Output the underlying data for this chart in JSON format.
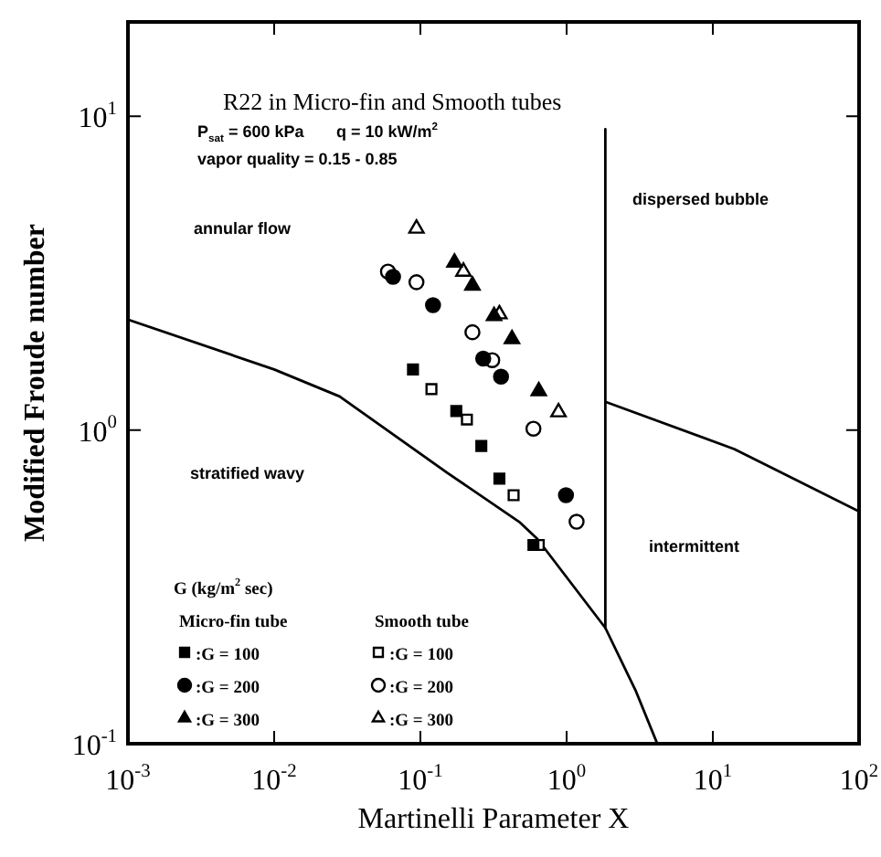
{
  "chart_data": {
    "type": "scatter",
    "title": "R22 in Micro-fin and Smooth tubes",
    "xlabel": "Martinelli Parameter X",
    "ylabel": "Modified Froude number",
    "legend_title": "G (kg/m$^{2}$ sec)",
    "annotations": [
      "P$_{sat}$ = 600 kPa",
      "q = 10 kW/m$^{2}$",
      "vapor quality = 0.15 - 0.85",
      "annular flow",
      "dispersed bubble",
      "stratified wavy",
      "intermittent",
      "Micro-fin tube",
      "Smooth tube"
    ],
    "log": "xy",
    "grid": false,
    "legend": "bottom left",
    "xlim": [
      0.001,
      100
    ],
    "ylim": [
      0.1,
      20
    ],
    "xticks": [
      {
        "value": 0.001,
        "label": "10$^{-3}$"
      },
      {
        "value": 0.01,
        "label": "10$^{-2}$"
      },
      {
        "value": 0.1,
        "label": "10$^{-1}$"
      },
      {
        "value": 1,
        "label": "10$^{0}$"
      },
      {
        "value": 10,
        "label": "10$^{1}$"
      },
      {
        "value": 100,
        "label": "10$^{2}$"
      }
    ],
    "yticks": [
      {
        "value": 0.1,
        "label": "10$^{-1}$"
      },
      {
        "value": 1,
        "label": "10$^{0}$"
      },
      {
        "value": 10,
        "label": "10$^{1}$"
      }
    ],
    "series": [
      {
        "name": ":G = 100",
        "color": "#000000",
        "marker": "square",
        "x": [
          0.089,
          0.176,
          0.261,
          0.347,
          0.593
        ],
        "values": [
          1.56,
          1.15,
          0.89,
          0.7,
          0.43
        ]
      },
      {
        "name": ":G = 200",
        "color": "#000000",
        "marker": "circle",
        "x": [
          0.065,
          0.122,
          0.269,
          0.356,
          0.99
        ],
        "values": [
          3.08,
          2.5,
          1.69,
          1.48,
          0.62
        ]
      },
      {
        "name": ":G = 300",
        "color": "#000000",
        "marker": "triangle",
        "x": [
          0.171,
          0.227,
          0.319,
          0.423,
          0.645
        ],
        "values": [
          3.42,
          2.89,
          2.31,
          1.95,
          1.33
        ]
      },
      {
        "name": ":G = 100",
        "color": "#000000",
        "marker": "square",
        "x": [
          0.119,
          0.208,
          0.434,
          0.645
        ],
        "values": [
          1.35,
          1.08,
          0.62,
          0.43
        ]
      },
      {
        "name": ":G = 200",
        "color": "#000000",
        "marker": "circle",
        "x": [
          0.06,
          0.094,
          0.227,
          0.31,
          0.593,
          1.17
        ],
        "values": [
          3.2,
          2.96,
          2.05,
          1.67,
          1.01,
          0.51
        ]
      },
      {
        "name": ":G = 300",
        "color": "#000000",
        "marker": "triangle",
        "x": [
          0.094,
          0.197,
          0.347,
          0.88
        ],
        "values": [
          4.39,
          3.2,
          2.34,
          1.14
        ]
      },
      {
        "type": "line",
        "color": "#000000",
        "marker": "none",
        "x": [
          0.001,
          0.01,
          0.028,
          0.153,
          0.473,
          0.63,
          1.84,
          2.96,
          4.17
        ],
        "values": [
          2.25,
          1.56,
          1.28,
          0.73,
          0.51,
          0.45,
          0.234,
          0.148,
          0.1
        ]
      },
      {
        "type": "line",
        "color": "#000000",
        "marker": "none",
        "x": [
          1.84,
          1.84
        ],
        "values": [
          9.1,
          0.234
        ]
      },
      {
        "type": "line",
        "color": "#000000",
        "marker": "none",
        "x": [
          1.84,
          14,
          100
        ],
        "values": [
          1.23,
          0.87,
          0.55
        ]
      }
    ]
  }
}
